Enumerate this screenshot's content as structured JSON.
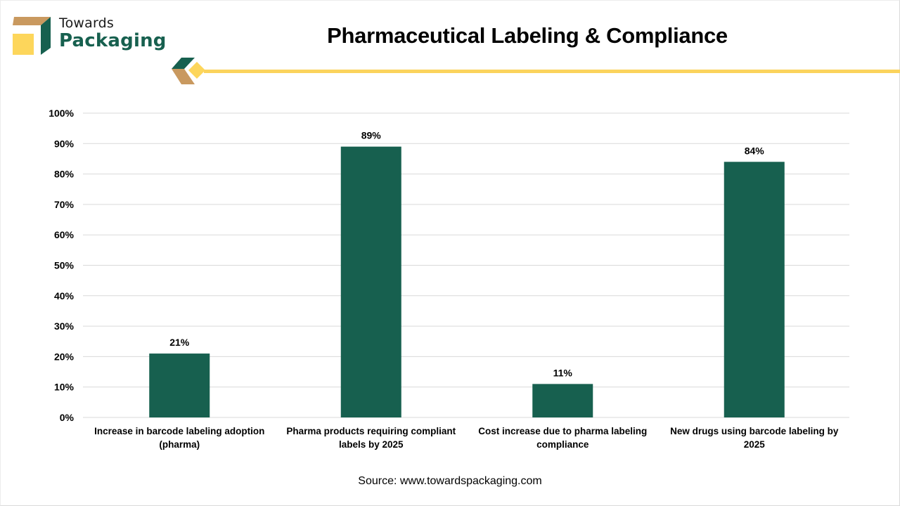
{
  "brand": {
    "name_top": "Towards",
    "name_bottom": "Packaging",
    "colors": {
      "green": "#17604f",
      "tan": "#c9995f",
      "yellow": "#fdd65b",
      "accent_line": "#fbd35c"
    }
  },
  "header": {
    "title": "Pharmaceutical Labeling & Compliance"
  },
  "footer": {
    "source": "Source: www.towardspackaging.com"
  },
  "chart_data": {
    "type": "bar",
    "title": "Pharmaceutical Labeling & Compliance",
    "xlabel": "",
    "ylabel": "",
    "categories": [
      [
        "Increase in barcode labeling adoption",
        "(pharma)"
      ],
      [
        "Pharma products requiring compliant",
        "labels by 2025"
      ],
      [
        "Cost increase due to pharma labeling",
        "compliance"
      ],
      [
        "New drugs using barcode labeling by",
        "2025"
      ]
    ],
    "values": [
      21,
      89,
      11,
      84
    ],
    "data_labels": [
      "21%",
      "89%",
      "11%",
      "84%"
    ],
    "ylim": [
      0,
      100
    ],
    "yticks": [
      0,
      10,
      20,
      30,
      40,
      50,
      60,
      70,
      80,
      90,
      100
    ],
    "ytick_labels": [
      "0%",
      "10%",
      "20%",
      "30%",
      "40%",
      "50%",
      "60%",
      "70%",
      "80%",
      "90%",
      "100%"
    ],
    "grid": true,
    "legend": "none",
    "bar_color": "#17604f",
    "grid_color": "#d9d9d9"
  }
}
